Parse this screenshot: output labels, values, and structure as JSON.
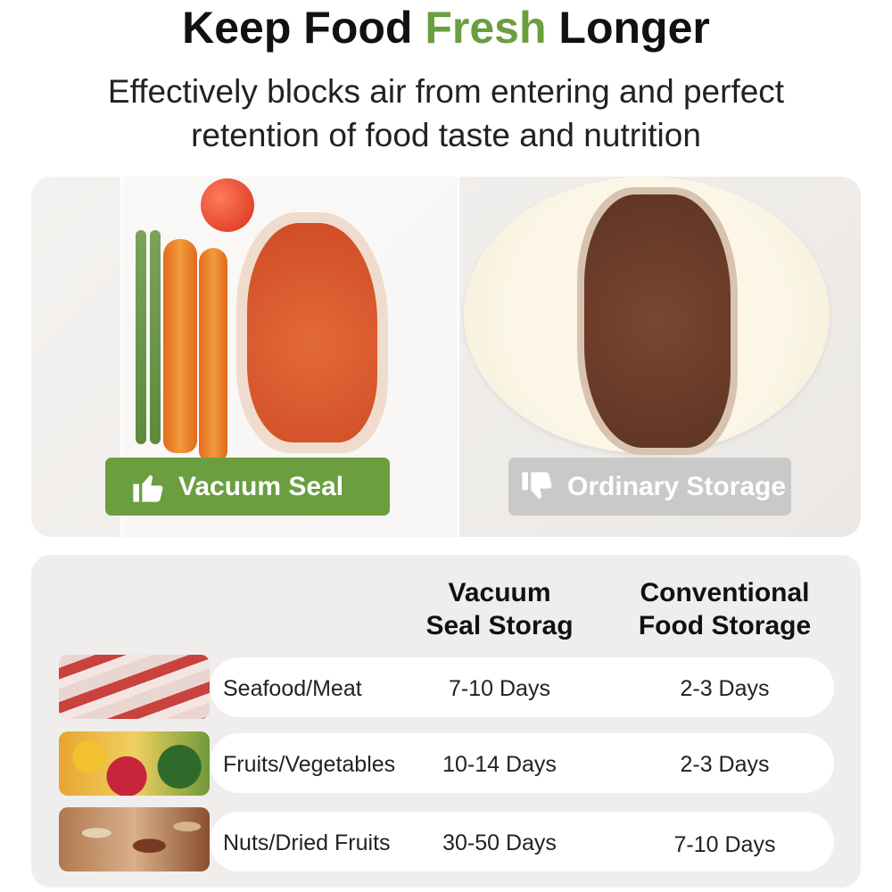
{
  "title": {
    "part1": "Keep Food ",
    "accent": "Fresh",
    "part2": " Longer",
    "accent_color": "#6a9e3f"
  },
  "subtitle": {
    "line1": "Effectively blocks air from entering and perfect",
    "line2": "retention of food taste and nutrition"
  },
  "comparison": {
    "good_label": "Vacuum Seal",
    "good_icon": "thumbs-up-icon",
    "good_color": "#6a9e3f",
    "bad_label": "Ordinary Storage",
    "bad_icon": "thumbs-down-icon",
    "bad_color": "#c9c9c9"
  },
  "table": {
    "headers": [
      {
        "line1": "Vacuum",
        "line2": "Seal Storag"
      },
      {
        "line1": "Conventional",
        "line2": "Food Storage"
      }
    ],
    "rows": [
      {
        "name": "Seafood/Meat",
        "vacuum": "7-10 Days",
        "conventional": "2-3 Days"
      },
      {
        "name": "Fruits/Vegetables",
        "vacuum": "10-14 Days",
        "conventional": "2-3 Days"
      },
      {
        "name": "Nuts/Dried Fruits",
        "vacuum": "30-50 Days",
        "conventional": "7-10 Days"
      }
    ]
  }
}
